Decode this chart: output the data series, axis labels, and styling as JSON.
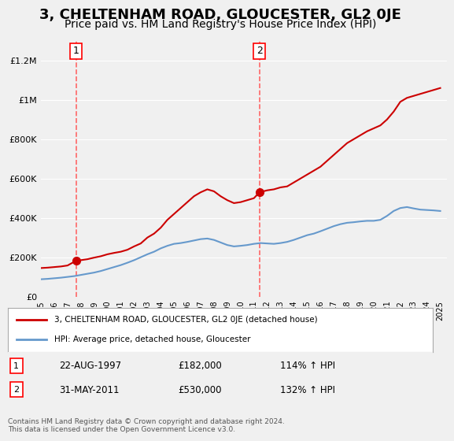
{
  "title": "3, CHELTENHAM ROAD, GLOUCESTER, GL2 0JE",
  "subtitle": "Price paid vs. HM Land Registry's House Price Index (HPI)",
  "title_fontsize": 13,
  "subtitle_fontsize": 10,
  "background_color": "#f0f0f0",
  "plot_bg_color": "#f0f0f0",
  "ylabel": "",
  "xlabel": "",
  "ylim": [
    0,
    1300000
  ],
  "xlim_start": 1995.0,
  "xlim_end": 2025.5,
  "yticks": [
    0,
    200000,
    400000,
    600000,
    800000,
    1000000,
    1200000
  ],
  "ytick_labels": [
    "£0",
    "£200K",
    "£400K",
    "£600K",
    "£800K",
    "£1M",
    "£1.2M"
  ],
  "xtick_years": [
    1995,
    1996,
    1997,
    1998,
    1999,
    2000,
    2001,
    2002,
    2003,
    2004,
    2005,
    2006,
    2007,
    2008,
    2009,
    2010,
    2011,
    2012,
    2013,
    2014,
    2015,
    2016,
    2017,
    2018,
    2019,
    2020,
    2021,
    2022,
    2023,
    2024,
    2025
  ],
  "point1_x": 1997.64,
  "point1_y": 182000,
  "point1_label": "1",
  "point1_date": "22-AUG-1997",
  "point1_price": "£182,000",
  "point1_hpi": "114% ↑ HPI",
  "point2_x": 2011.42,
  "point2_y": 530000,
  "point2_label": "2",
  "point2_date": "31-MAY-2011",
  "point2_price": "£530,000",
  "point2_hpi": "132% ↑ HPI",
  "line1_color": "#cc0000",
  "line2_color": "#6699cc",
  "vline_color": "#ff6666",
  "point_color": "#cc0000",
  "legend1_label": "3, CHELTENHAM ROAD, GLOUCESTER, GL2 0JE (detached house)",
  "legend2_label": "HPI: Average price, detached house, Gloucester",
  "footer": "Contains HM Land Registry data © Crown copyright and database right 2024.\nThis data is licensed under the Open Government Licence v3.0.",
  "red_line_x": [
    1995.0,
    1995.5,
    1996.0,
    1996.5,
    1997.0,
    1997.64,
    1998.0,
    1998.5,
    1999.0,
    1999.5,
    2000.0,
    2000.5,
    2001.0,
    2001.5,
    2002.0,
    2002.5,
    2003.0,
    2003.5,
    2004.0,
    2004.5,
    2005.0,
    2005.5,
    2006.0,
    2006.5,
    2007.0,
    2007.5,
    2008.0,
    2008.5,
    2009.0,
    2009.5,
    2010.0,
    2010.5,
    2011.0,
    2011.42,
    2012.0,
    2012.5,
    2013.0,
    2013.5,
    2014.0,
    2014.5,
    2015.0,
    2015.5,
    2016.0,
    2016.5,
    2017.0,
    2017.5,
    2018.0,
    2018.5,
    2019.0,
    2019.5,
    2020.0,
    2020.5,
    2021.0,
    2021.5,
    2022.0,
    2022.5,
    2023.0,
    2023.5,
    2024.0,
    2024.5,
    2025.0
  ],
  "red_line_y": [
    145000,
    147000,
    150000,
    153000,
    158000,
    182000,
    185000,
    190000,
    198000,
    205000,
    215000,
    222000,
    228000,
    238000,
    255000,
    270000,
    300000,
    320000,
    350000,
    390000,
    420000,
    450000,
    480000,
    510000,
    530000,
    545000,
    535000,
    510000,
    490000,
    475000,
    480000,
    490000,
    500000,
    530000,
    540000,
    545000,
    555000,
    560000,
    580000,
    600000,
    620000,
    640000,
    660000,
    690000,
    720000,
    750000,
    780000,
    800000,
    820000,
    840000,
    855000,
    870000,
    900000,
    940000,
    990000,
    1010000,
    1020000,
    1030000,
    1040000,
    1050000,
    1060000
  ],
  "blue_line_x": [
    1995.0,
    1995.5,
    1996.0,
    1996.5,
    1997.0,
    1997.5,
    1998.0,
    1998.5,
    1999.0,
    1999.5,
    2000.0,
    2000.5,
    2001.0,
    2001.5,
    2002.0,
    2002.5,
    2003.0,
    2003.5,
    2004.0,
    2004.5,
    2005.0,
    2005.5,
    2006.0,
    2006.5,
    2007.0,
    2007.5,
    2008.0,
    2008.5,
    2009.0,
    2009.5,
    2010.0,
    2010.5,
    2011.0,
    2011.5,
    2012.0,
    2012.5,
    2013.0,
    2013.5,
    2014.0,
    2014.5,
    2015.0,
    2015.5,
    2016.0,
    2016.5,
    2017.0,
    2017.5,
    2018.0,
    2018.5,
    2019.0,
    2019.5,
    2020.0,
    2020.5,
    2021.0,
    2021.5,
    2022.0,
    2022.5,
    2023.0,
    2023.5,
    2024.0,
    2024.5,
    2025.0
  ],
  "blue_line_y": [
    88000,
    90000,
    93000,
    96000,
    100000,
    104000,
    110000,
    116000,
    122000,
    130000,
    140000,
    150000,
    160000,
    172000,
    185000,
    200000,
    215000,
    228000,
    245000,
    258000,
    268000,
    272000,
    278000,
    285000,
    292000,
    295000,
    288000,
    275000,
    262000,
    255000,
    258000,
    262000,
    268000,
    272000,
    270000,
    268000,
    272000,
    278000,
    288000,
    300000,
    312000,
    320000,
    332000,
    345000,
    358000,
    368000,
    375000,
    378000,
    382000,
    385000,
    385000,
    390000,
    410000,
    435000,
    450000,
    455000,
    448000,
    442000,
    440000,
    438000,
    435000
  ]
}
